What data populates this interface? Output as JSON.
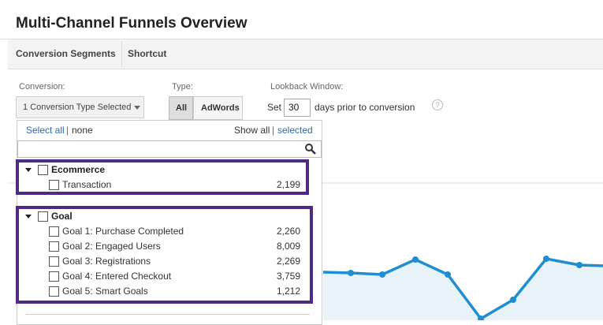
{
  "header": {
    "title": "Multi-Channel Funnels Overview"
  },
  "tabs": [
    "Conversion Segments",
    "Shortcut"
  ],
  "controls": {
    "conversion_label": "Conversion:",
    "conversion_button": "1 Conversion Type Selected",
    "type_label": "Type:",
    "type_buttons": [
      "All",
      "AdWords"
    ],
    "lookback_label": "Lookback Window:",
    "set": "Set",
    "lookback_value": "30",
    "days_text": "days prior to conversion",
    "help": "?"
  },
  "dropdown": {
    "select_all": "Select all",
    "separator": "|",
    "none": "none",
    "show_all": "Show all",
    "selected": "selected",
    "groups": [
      {
        "name": "Ecommerce",
        "items": [
          {
            "label": "Transaction",
            "count": "2,199"
          }
        ]
      },
      {
        "name": "Goal",
        "items": [
          {
            "label": "Goal 1: Purchase Completed",
            "count": "2,260"
          },
          {
            "label": "Goal 2: Engaged Users",
            "count": "8,009"
          },
          {
            "label": "Goal 3: Registrations",
            "count": "2,269"
          },
          {
            "label": "Goal 4: Entered Checkout",
            "count": "3,759"
          },
          {
            "label": "Goal 5: Smart Goals",
            "count": "1,212"
          }
        ]
      }
    ]
  }
}
